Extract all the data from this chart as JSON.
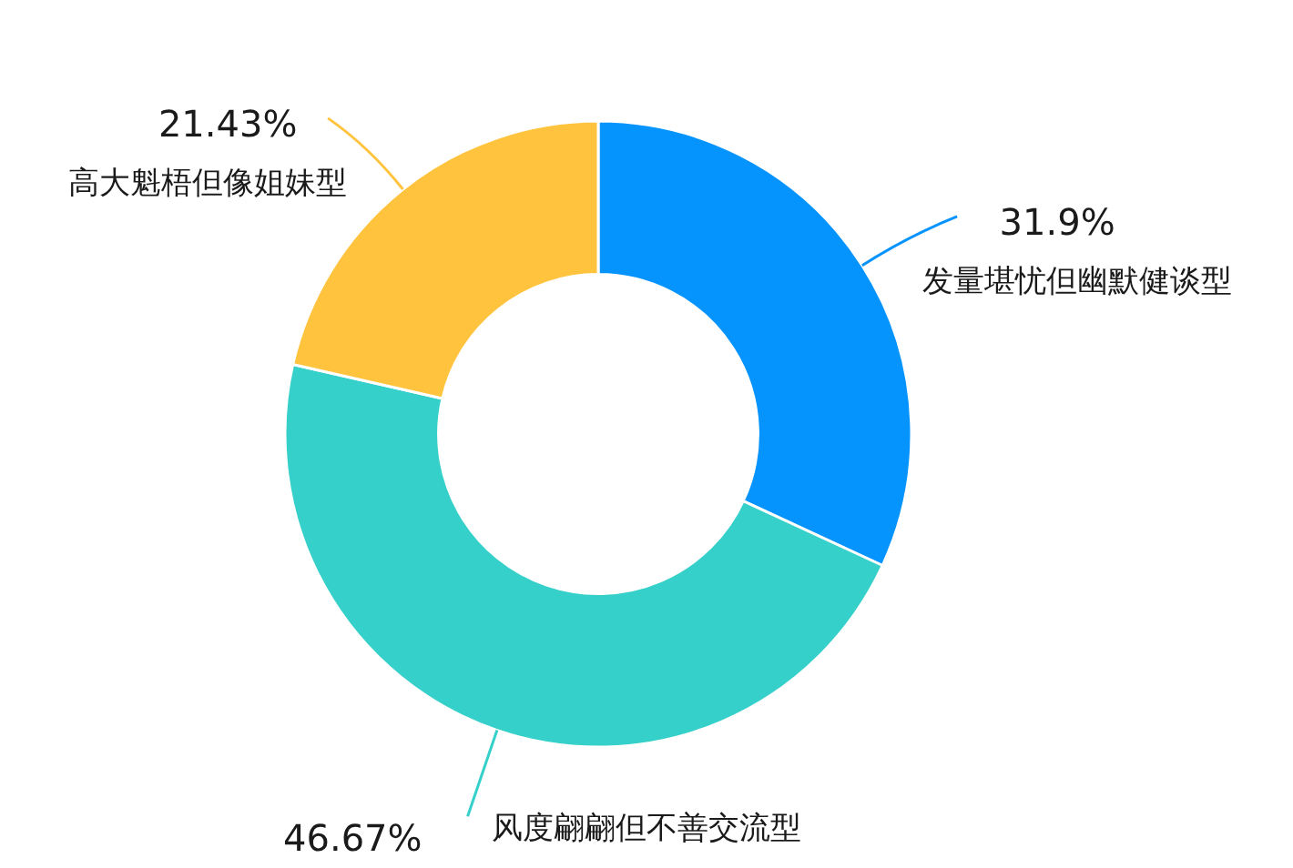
{
  "chart_data": {
    "type": "donut",
    "categories": [
      "发量堪忧但幽默健谈型",
      "风度翩翩但不善交流型",
      "高大魁梧但像姐妹型"
    ],
    "values": [
      31.9,
      46.67,
      21.43
    ],
    "colors": [
      "#0593fd",
      "#36d0ca",
      "#ffc33e"
    ],
    "value_labels": [
      "31.9%",
      "46.67%",
      "21.43%"
    ]
  }
}
